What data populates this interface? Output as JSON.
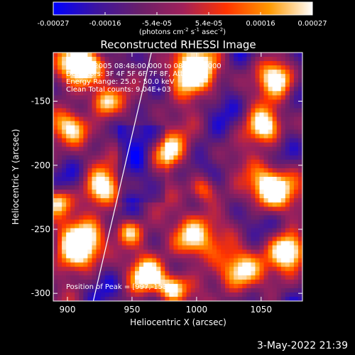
{
  "colorbar": {
    "ticks": [
      "-0.00027",
      "-0.00016",
      "-5.4e-05",
      "5.4e-05",
      "0.00016",
      "0.00027"
    ],
    "unit_main": "(photons cm",
    "unit_sup1": "-2",
    "unit_mid": " s",
    "unit_sup2": "-1",
    "unit_end": " asec",
    "unit_sup3": "-2",
    "unit_close": ")",
    "colormap": [
      "#0000ff",
      "#3c14a0",
      "#6a1f6a",
      "#a0205a",
      "#ff3300",
      "#ff9900",
      "#ffffff"
    ]
  },
  "chart_data": {
    "type": "heatmap",
    "title": "Reconstructed RHESSI Image",
    "xlabel": "Heliocentric X (arcsec)",
    "ylabel": "Heliocentric Y (arcsec)",
    "xlim": [
      889,
      1082
    ],
    "ylim": [
      -306,
      -112
    ],
    "x_ticks": [
      "900",
      "950",
      "1000",
      "1050"
    ],
    "y_ticks": [
      "-150",
      "-200",
      "-250",
      "-300"
    ],
    "annotations": [
      "18-Dec-2005 08:48:00.000 to 08:52:00.000",
      "Detectors: 3F 4F 5F 6F 7F 8F, Att 0",
      "Energy Range: 25.0 - 50.0 keV",
      "Clean    Total counts: 9.04E+03"
    ],
    "peak_label": "Position of Peak = [997,-153]",
    "peak_position": [
      997,
      -153
    ],
    "limb_line": [
      [
        920,
        -306
      ],
      [
        965,
        -112
      ]
    ]
  },
  "footer": {
    "date": "3-May-2022 21:39"
  }
}
